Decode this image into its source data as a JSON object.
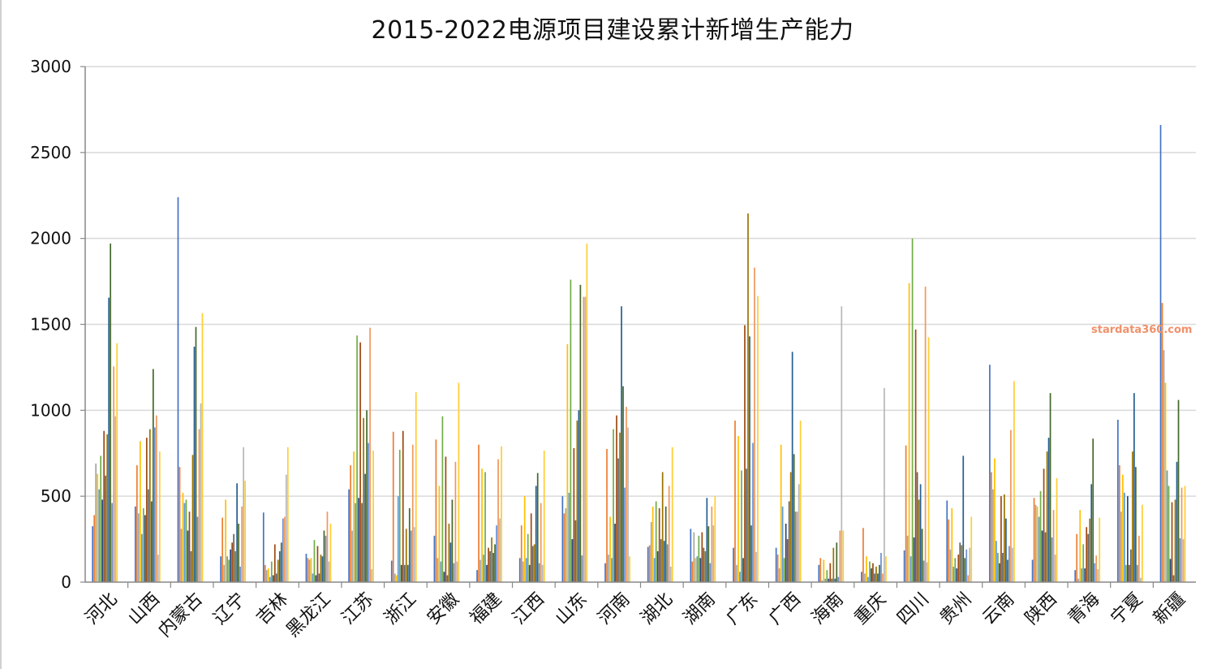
{
  "watermark": "stardata360.com",
  "chart_data": {
    "type": "bar",
    "title": "2015-2022电源项目建设累计新增生产能力",
    "xlabel": "",
    "ylabel": "",
    "ylim": [
      0,
      3000
    ],
    "yticks": [
      0,
      500,
      1000,
      1500,
      2000,
      2500,
      3000
    ],
    "grid": true,
    "legend": "none",
    "colors": [
      "#4472c4",
      "#ed7d31",
      "#a5a5a5",
      "#ffc000",
      "#5b9bd5",
      "#70ad47",
      "#264478",
      "#9e480e",
      "#636363",
      "#997300",
      "#255e91",
      "#43682b",
      "#698ed0",
      "#f1975a",
      "#b7b7b7",
      "#ffcd33"
    ],
    "categories": [
      "河北",
      "山西",
      "内蒙古",
      "辽宁",
      "吉林",
      "黑龙江",
      "江苏",
      "浙江",
      "安徽",
      "福建",
      "江西",
      "山东",
      "河南",
      "湖北",
      "湖南",
      "广东",
      "广西",
      "海南",
      "重庆",
      "四川",
      "贵州",
      "云南",
      "陕西",
      "青海",
      "宁夏",
      "新疆"
    ],
    "values": [
      [
        325,
        390,
        690,
        630,
        540,
        735,
        480,
        880,
        620,
        860,
        1655,
        1970,
        460,
        1255,
        965,
        1390
      ],
      [
        440,
        680,
        400,
        820,
        280,
        430,
        390,
        840,
        540,
        890,
        470,
        1240,
        900,
        970,
        160,
        760
      ],
      [
        2240,
        670,
        310,
        520,
        460,
        480,
        300,
        410,
        180,
        740,
        1370,
        1485,
        380,
        890,
        1040,
        1565
      ],
      [
        150,
        375,
        100,
        480,
        150,
        130,
        190,
        230,
        280,
        180,
        575,
        340,
        90,
        440,
        785,
        590
      ],
      [
        405,
        100,
        70,
        80,
        30,
        120,
        40,
        220,
        50,
        130,
        180,
        230,
        370,
        380,
        625,
        785
      ],
      [
        165,
        140,
        130,
        140,
        50,
        245,
        40,
        210,
        50,
        160,
        150,
        300,
        270,
        410,
        120,
        340
      ],
      [
        540,
        680,
        300,
        760,
        460,
        1435,
        490,
        1395,
        460,
        955,
        630,
        1000,
        810,
        1480,
        75,
        765
      ],
      [
        125,
        875,
        50,
        40,
        500,
        770,
        100,
        880,
        100,
        310,
        100,
        430,
        300,
        800,
        320,
        1105
      ],
      [
        270,
        830,
        140,
        560,
        120,
        965,
        60,
        730,
        40,
        340,
        230,
        480,
        110,
        700,
        120,
        1160
      ],
      [
        70,
        800,
        130,
        660,
        160,
        640,
        100,
        200,
        180,
        260,
        170,
        220,
        330,
        715,
        370,
        790
      ],
      [
        140,
        330,
        120,
        500,
        140,
        280,
        100,
        400,
        210,
        220,
        560,
        635,
        110,
        460,
        100,
        765
      ],
      [
        500,
        400,
        430,
        1385,
        520,
        1760,
        250,
        780,
        360,
        940,
        1000,
        1730,
        155,
        1660,
        1660,
        1970
      ],
      [
        110,
        775,
        160,
        380,
        140,
        890,
        340,
        970,
        720,
        870,
        1605,
        1140,
        550,
        1020,
        900,
        150
      ],
      [
        205,
        215,
        350,
        440,
        140,
        470,
        180,
        430,
        250,
        640,
        240,
        440,
        220,
        560,
        90,
        785
      ],
      [
        310,
        120,
        290,
        140,
        150,
        270,
        140,
        290,
        200,
        180,
        490,
        325,
        110,
        440,
        330,
        500
      ],
      [
        200,
        940,
        100,
        850,
        60,
        650,
        140,
        1495,
        660,
        2145,
        1430,
        330,
        810,
        1830,
        175,
        1665
      ],
      [
        200,
        160,
        80,
        800,
        440,
        140,
        340,
        250,
        470,
        640,
        1340,
        745,
        410,
        410,
        570,
        940
      ],
      [
        100,
        140,
        10,
        130,
        20,
        70,
        20,
        110,
        20,
        200,
        20,
        230,
        30,
        300,
        1605,
        300
      ],
      [
        60,
        315,
        50,
        150,
        30,
        120,
        80,
        110,
        50,
        90,
        50,
        100,
        170,
        50,
        1130,
        150
      ],
      [
        185,
        795,
        270,
        1740,
        150,
        2000,
        260,
        1470,
        640,
        480,
        570,
        310,
        125,
        1720,
        115,
        1425
      ],
      [
        475,
        365,
        190,
        430,
        90,
        140,
        80,
        160,
        230,
        215,
        735,
        140,
        190,
        40,
        200,
        380
      ],
      [
        1265,
        640,
        540,
        720,
        240,
        170,
        110,
        500,
        170,
        510,
        370,
        130,
        210,
        885,
        200,
        1170
      ],
      [
        130,
        490,
        450,
        440,
        380,
        530,
        300,
        660,
        290,
        760,
        840,
        1100,
        260,
        420,
        160,
        605
      ],
      [
        70,
        280,
        20,
        420,
        80,
        220,
        80,
        320,
        280,
        370,
        570,
        835,
        110,
        155,
        75,
        375
      ],
      [
        945,
        680,
        410,
        625,
        520,
        100,
        500,
        100,
        190,
        760,
        1100,
        670,
        100,
        270,
        25,
        450
      ],
      [
        2660,
        1625,
        1350,
        1160,
        650,
        560,
        135,
        465,
        40,
        480,
        700,
        1060,
        255,
        550,
        250,
        560
      ]
    ]
  }
}
